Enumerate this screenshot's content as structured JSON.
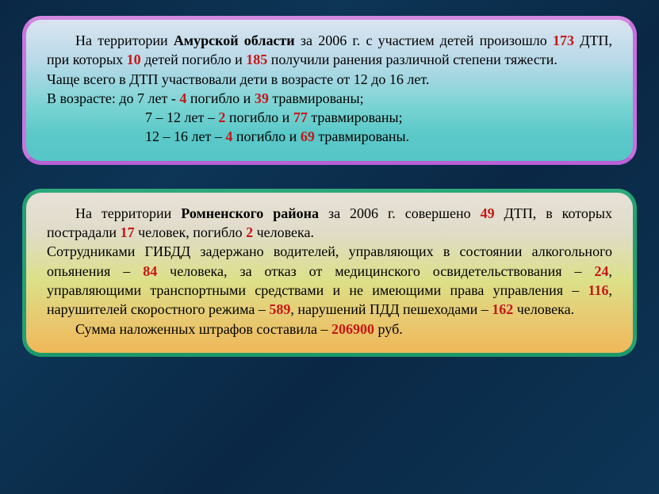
{
  "card1": {
    "line1_pre": "На территории ",
    "line1_bold": "Амурской области",
    "line1_mid1": " за 2006 г. с участием детей произошло ",
    "num173": "173",
    "line1_mid2": " ДТП, при которых ",
    "num10": "10",
    "line1_mid3": " детей погибло и ",
    "num185": "185",
    "line1_end": " получили ранения различной степени тяжести.",
    "line2": "Чаще всего в ДТП участвовали дети в возрасте от 12 до 16 лет.",
    "line3_pre": "В возрасте:   до 7 лет -  ",
    "num4a": "4",
    "line3_mid": " погибло и ",
    "num39": "39",
    "line3_end": " травмированы;",
    "line4_pre": "7 – 12 лет – ",
    "num2": "2",
    "line4_mid": " погибло и ",
    "num77": "77",
    "line4_end": " травмированы;",
    "line5_pre": "12 – 16 лет – ",
    "num4b": "4",
    "line5_mid": " погибло и ",
    "num69": "69",
    "line5_end": " травмированы."
  },
  "card2": {
    "line1_pre": "На территории ",
    "line1_bold": "Ромненского района",
    "line1_mid1": " за 2006 г. совершено ",
    "num49": "49",
    "line1_mid2": " ДТП, в которых пострадали ",
    "num17": "17",
    "line1_mid3": " человек, погибло ",
    "num2b": "2",
    "line1_end": " человека.",
    "line2_pre": "Сотрудниками ГИБДД задержано водителей, управляющих в состоянии алкогольного опьянения – ",
    "num84": "84",
    "line2_mid1": " человека, за отказ от медицинского освидетельствования – ",
    "num24": "24",
    "line2_mid2": ", управляющими транспортными средствами и не имеющими права управления – ",
    "num116": "116",
    "line2_mid3": ", нарушителей скоростного режима – ",
    "num589": "589",
    "line2_mid4": ", нарушений ПДД пешеходами – ",
    "num162": "162",
    "line2_end": " человека.",
    "line3_pre": "Сумма наложенных штрафов составила – ",
    "num206900": "206900",
    "line3_end": " руб."
  }
}
